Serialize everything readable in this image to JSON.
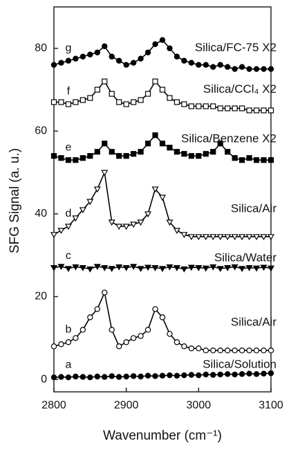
{
  "chart_data": {
    "type": "line",
    "xlabel": "Wavenumber (cm⁻¹)",
    "ylabel": "SFG Signal (a. u.)",
    "xlim": [
      2800,
      3100
    ],
    "xticks": [
      2800,
      2900,
      3000,
      3100
    ],
    "ylim": [
      -3,
      90
    ],
    "yticks": [
      0,
      20,
      40,
      60,
      80
    ],
    "x": [
      2800,
      2810,
      2820,
      2830,
      2840,
      2850,
      2860,
      2870,
      2880,
      2890,
      2900,
      2910,
      2920,
      2930,
      2940,
      2950,
      2960,
      2970,
      2980,
      2990,
      3000,
      3010,
      3020,
      3030,
      3040,
      3050,
      3060,
      3070,
      3080,
      3090,
      3100
    ],
    "series": [
      {
        "letter": "a",
        "name": "Silica/Solution",
        "color": "#000000",
        "marker": "circle",
        "filled": true,
        "values": [
          0.5,
          0.6,
          0.5,
          0.7,
          0.6,
          0.5,
          0.7,
          0.6,
          0.8,
          0.6,
          0.7,
          0.8,
          0.7,
          0.9,
          0.8,
          0.9,
          1.0,
          0.9,
          1.0,
          1.1,
          1.0,
          1.2,
          1.1,
          1.2,
          1.3,
          1.2,
          1.3,
          1.4,
          1.3,
          1.4,
          1.5
        ]
      },
      {
        "letter": "b",
        "name": "Silica/Air",
        "color": "#000000",
        "marker": "circle",
        "filled": false,
        "values": [
          8,
          8.5,
          9,
          10,
          12,
          15,
          17,
          21,
          12,
          8,
          9,
          10,
          10.5,
          12,
          17,
          15,
          11,
          9,
          8,
          7.5,
          7.5,
          7,
          7,
          7,
          7,
          7,
          7,
          7,
          7,
          7,
          7
        ]
      },
      {
        "letter": "c",
        "name": "Silica/Water",
        "color": "#000000",
        "marker": "triangle",
        "filled": true,
        "values": [
          27,
          27.3,
          26.8,
          27.2,
          27,
          26.7,
          27.3,
          27,
          26.8,
          27.2,
          27,
          27.3,
          26.8,
          27.1,
          27,
          26.8,
          27.2,
          27,
          26.7,
          27.1,
          27,
          26.9,
          27.2,
          26.8,
          27,
          27.2,
          26.8,
          27,
          26.9,
          27.1,
          26.9
        ]
      },
      {
        "letter": "d",
        "name": "Silica/Air",
        "color": "#000000",
        "marker": "triangle",
        "filled": false,
        "values": [
          35,
          36,
          37,
          39,
          41,
          43,
          46,
          50,
          38,
          37,
          37,
          37.5,
          38,
          40,
          46,
          44,
          38,
          36,
          35,
          34.5,
          34.5,
          34.5,
          34.5,
          34.5,
          34.5,
          34.5,
          34.5,
          34.5,
          34.5,
          34.5,
          34.5
        ]
      },
      {
        "letter": "e",
        "name": "Silica/Benzene  X2",
        "color": "#000000",
        "marker": "square",
        "filled": true,
        "values": [
          54,
          53.5,
          53,
          53,
          53.5,
          54,
          55,
          57,
          55,
          54,
          54,
          54.5,
          55,
          57,
          59,
          57,
          56,
          55,
          54.5,
          54,
          54,
          54.5,
          55,
          57,
          55,
          53.5,
          53,
          53.5,
          53,
          53,
          53
        ]
      },
      {
        "letter": "f",
        "name": "Silica/CCl₄  X2",
        "color": "#000000",
        "marker": "square",
        "filled": false,
        "values": [
          67,
          67,
          66.5,
          67,
          67.5,
          68,
          70,
          72,
          69,
          67,
          66.5,
          67,
          67.5,
          69,
          72,
          70,
          68,
          67,
          66.5,
          66,
          66,
          66,
          66,
          65.5,
          65.5,
          65.5,
          65.5,
          65,
          65,
          65,
          65
        ]
      },
      {
        "letter": "g",
        "name": "Silica/FC-75  X2",
        "color": "#000000",
        "marker": "circle",
        "filled": true,
        "values": [
          76,
          76.5,
          77,
          77.5,
          78,
          78.5,
          79,
          80.5,
          78,
          77,
          76,
          76.5,
          77.5,
          79,
          81,
          82,
          80,
          78,
          77,
          76.5,
          76,
          76,
          75.5,
          76,
          75.5,
          75,
          75.5,
          75,
          75,
          75,
          75
        ]
      }
    ]
  }
}
